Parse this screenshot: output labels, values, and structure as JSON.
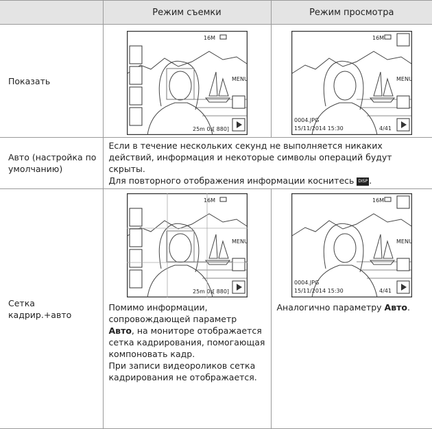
{
  "table": {
    "header": [
      "Режим съемки",
      "Режим просмотра"
    ],
    "rows": [
      {
        "label": "Показать",
        "shooting_screen": {
          "size": "16M",
          "menu": "MENU",
          "time": "25m 0s",
          "count": "[ 880]"
        },
        "playback_screen": {
          "size": "16M",
          "menu": "MENU",
          "file": "0004.JPG",
          "date": "15/11/2014 15:30",
          "frame": "4/41"
        }
      },
      {
        "label": "Авто (настройка по умолчанию)",
        "text": [
          "Если в течение нескольких секунд не выполняется никаких действий, информация и некоторые символы операций будут скрыты.",
          "Для повторного отображения информации коснитесь"
        ],
        "icon": "DISP",
        "end": "."
      },
      {
        "label": "Сетка кадрир.+авто",
        "shooting_screen": {
          "size": "16M",
          "menu": "MENU",
          "time": "25m 0s",
          "count": "[ 880]"
        },
        "playback_screen": {
          "size": "16M",
          "menu": "MENU",
          "file": "0004.JPG",
          "date": "15/11/2014 15:30",
          "frame": "4/41"
        },
        "shooting_text": [
          "Помимо информации, сопровождающей параметр",
          "Авто",
          ", на мониторе отображается сетка кадрирования, помогающая компоновать кадр.",
          "При записи видеороликов сетка кадрирования не отображается."
        ],
        "playback_text": [
          "Аналогично параметру",
          "Авто",
          "."
        ]
      }
    ]
  }
}
